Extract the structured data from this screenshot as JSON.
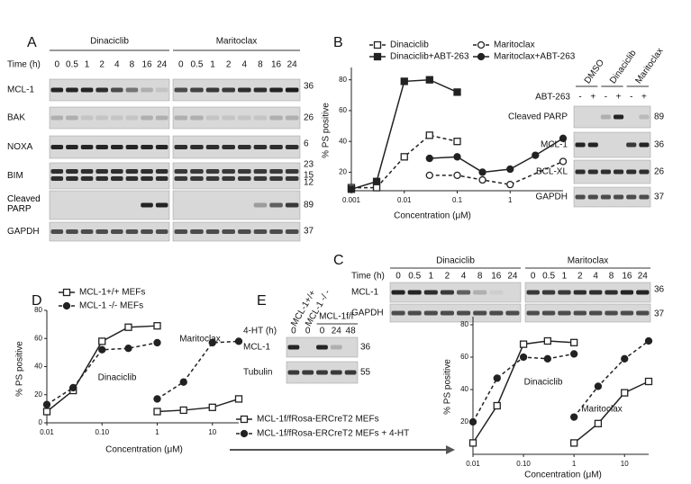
{
  "panel_labels": [
    "A",
    "B",
    "C",
    "D",
    "E"
  ],
  "blot_A": {
    "groups": [
      "Dinaciclib",
      "Maritoclax"
    ],
    "time_label": "Time (h)",
    "times": [
      0,
      0.5,
      1,
      2,
      4,
      8,
      16,
      24
    ],
    "rows": [
      "MCL-1",
      "BAK",
      "NOXA",
      "BIM",
      "Cleaved PARP",
      "GAPDH"
    ],
    "mw": [
      36,
      26,
      6,
      23,
      15,
      12,
      89,
      37
    ]
  },
  "blot_B": {
    "columns": [
      "DMSO",
      "Dinaciclib",
      "Maritoclax"
    ],
    "treatment": "ABT-263",
    "signs": [
      "-",
      "+",
      "-",
      "+",
      "-",
      "+"
    ],
    "rows": [
      "Cleaved PARP",
      "MCL-1",
      "BCL-XL",
      "GAPDH"
    ],
    "mw": [
      89,
      36,
      26,
      37
    ]
  },
  "blot_C": {
    "groups": [
      "Dinaciclib",
      "Maritoclax"
    ],
    "time_label": "Time (h)",
    "times": [
      0,
      0.5,
      1,
      2,
      4,
      8,
      16,
      24
    ],
    "rows": [
      "MCL-1",
      "GAPDH"
    ],
    "mw": [
      36,
      37
    ]
  },
  "blot_E": {
    "columns": [
      "MCL-1+/+",
      "MCL-1 -/ -"
    ],
    "group": "MCL-1f/f",
    "time_label": "4-HT (h)",
    "times": [
      0,
      0,
      0,
      24,
      48
    ],
    "rows": [
      "MCL-1",
      "Tubulin"
    ],
    "mw": [
      36,
      55
    ]
  },
  "chart_data": [
    {
      "type": "line",
      "xlabel": "Concentration (μM)",
      "ylabel": "% PS positive",
      "xscale": "log",
      "xlim": [
        0.001,
        10
      ],
      "xticks": [
        0.001,
        0.01,
        0.1,
        1
      ],
      "ylim": [
        8,
        88
      ],
      "yticks": [
        20,
        40,
        60,
        80
      ],
      "series": [
        {
          "name": "Dinaciclib",
          "color": "#222",
          "marker": "square-open",
          "linestyle": "dashed",
          "x": [
            0.001,
            0.003,
            0.01,
            0.03,
            0.1
          ],
          "values": [
            10,
            10,
            30,
            44,
            40
          ]
        },
        {
          "name": "Dinaciclib+ABT-263",
          "color": "#222",
          "marker": "square-filled",
          "linestyle": "solid",
          "x": [
            0.001,
            0.003,
            0.01,
            0.03,
            0.1
          ],
          "values": [
            9,
            14,
            79,
            80,
            72
          ]
        },
        {
          "name": "Maritoclax",
          "color": "#222",
          "marker": "circle-open",
          "linestyle": "dashed",
          "x": [
            0.03,
            0.1,
            0.3,
            1,
            10
          ],
          "values": [
            18,
            18,
            15,
            12,
            27
          ]
        },
        {
          "name": "Maritoclax+ABT-263",
          "color": "#222",
          "marker": "circle-filled",
          "linestyle": "solid",
          "x": [
            0.03,
            0.1,
            0.3,
            1,
            3,
            10
          ],
          "values": [
            29,
            30,
            20,
            22,
            31,
            42
          ]
        }
      ]
    },
    {
      "type": "line",
      "xlabel": "Concentration (μM)",
      "ylabel": "% PS positive",
      "xscale": "log",
      "xlim": [
        0.01,
        30
      ],
      "xticks": [
        0.01,
        {
          "value": 0.1,
          "label": "0.10"
        },
        1,
        10
      ],
      "ylim": [
        0,
        80
      ],
      "yticks": [
        0,
        20,
        40,
        60,
        80
      ],
      "annotations": [
        "Dinaciclib",
        "Maritoclax"
      ],
      "series": [
        {
          "name": "MCL-1+/+ MEFs",
          "color": "#222",
          "marker": "square-open",
          "linestyle": "solid",
          "x": [
            0.01,
            0.03,
            0.1,
            0.3,
            1,
            null,
            1,
            3,
            10,
            30
          ],
          "values": [
            8,
            23,
            58,
            68,
            69,
            null,
            8,
            9,
            11,
            17
          ]
        },
        {
          "name": "MCL-1 -/- MEFs",
          "color": "#222",
          "marker": "circle-filled",
          "linestyle": "dashed",
          "x": [
            0.01,
            0.03,
            0.1,
            0.3,
            1,
            null,
            1,
            3,
            10,
            30
          ],
          "values": [
            13,
            25,
            52,
            53,
            57,
            null,
            17,
            29,
            57,
            58
          ]
        }
      ]
    },
    {
      "type": "line",
      "xlabel": "Concentration (μM)",
      "ylabel": "% PS positive",
      "xscale": "log",
      "xlim": [
        0.01,
        30
      ],
      "xticks": [
        0.01,
        {
          "value": 0.1,
          "label": "0.10"
        },
        1,
        10
      ],
      "ylim": [
        0,
        85
      ],
      "yticks": [
        20,
        40,
        60,
        80
      ],
      "annotations": [
        "Dinaciclib",
        "Maritoclax"
      ],
      "series": [
        {
          "name": "MCL-1f/fRosa-ERCreT2 MEFs",
          "color": "#222",
          "marker": "square-open",
          "linestyle": "solid",
          "x": [
            0.01,
            0.03,
            0.1,
            0.3,
            1,
            null,
            1,
            3,
            10,
            30
          ],
          "values": [
            7,
            30,
            68,
            70,
            69,
            null,
            7,
            19,
            38,
            45
          ]
        },
        {
          "name": "MCL-1f/fRosa-ERCreT2 MEFs + 4-HT",
          "color": "#222",
          "marker": "circle-filled",
          "linestyle": "dashed",
          "x": [
            0.01,
            0.03,
            0.1,
            0.3,
            1,
            null,
            1,
            3,
            10,
            30
          ],
          "values": [
            20,
            47,
            60,
            59,
            62,
            null,
            23,
            42,
            59,
            70
          ]
        }
      ]
    }
  ]
}
